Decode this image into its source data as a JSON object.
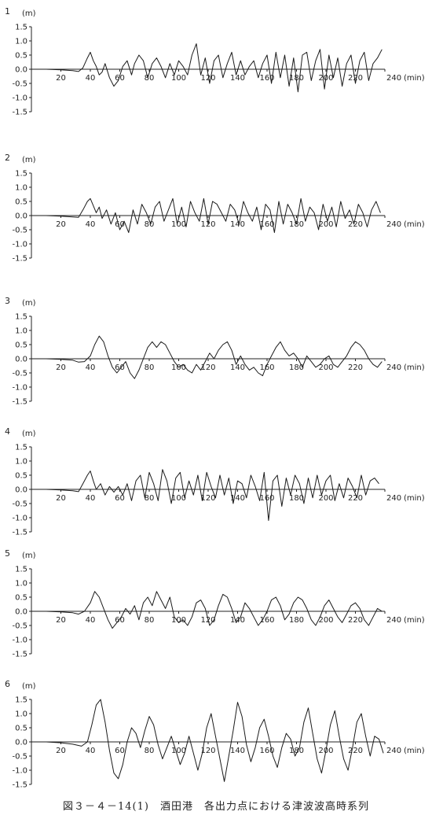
{
  "caption": "図３－４－14(1)　酒田港　各出力点における津波波高時系列",
  "chart_data": [
    {
      "type": "line",
      "panel_label": "1",
      "ylabel": "(m)",
      "xlabel": "(min)",
      "xlim": [
        0,
        240
      ],
      "ylim": [
        -1.5,
        1.5
      ],
      "yticks": [
        "1.5",
        "1.0",
        "0.5",
        "0.0",
        "-0.5",
        "-1.0",
        "-1.5"
      ],
      "xticks": [
        "20",
        "40",
        "60",
        "80",
        "100",
        "120",
        "140",
        "160",
        "180",
        "200",
        "220",
        "240"
      ],
      "x": [
        0,
        10,
        20,
        28,
        32,
        35,
        38,
        40,
        42,
        44,
        46,
        48,
        50,
        53,
        56,
        59,
        62,
        65,
        68,
        70,
        73,
        76,
        79,
        82,
        85,
        88,
        91,
        94,
        97,
        100,
        103,
        106,
        109,
        112,
        115,
        118,
        121,
        124,
        127,
        130,
        133,
        136,
        139,
        142,
        145,
        148,
        151,
        154,
        157,
        160,
        163,
        166,
        169,
        172,
        175,
        178,
        181,
        184,
        187,
        190,
        193,
        196,
        199,
        202,
        205,
        208,
        211,
        214,
        217,
        220,
        223,
        226,
        229,
        232,
        235,
        238
      ],
      "y": [
        0,
        0,
        -0.02,
        -0.05,
        -0.08,
        0.05,
        0.4,
        0.6,
        0.3,
        0.1,
        -0.2,
        -0.1,
        0.2,
        -0.3,
        -0.6,
        -0.4,
        0.1,
        0.3,
        -0.2,
        0.2,
        0.5,
        0.3,
        -0.3,
        0.2,
        0.4,
        0.1,
        -0.3,
        0.2,
        -0.2,
        0.3,
        0.1,
        -0.2,
        0.5,
        0.9,
        -0.2,
        0.4,
        -0.5,
        0.3,
        0.5,
        -0.3,
        0.2,
        0.6,
        -0.2,
        0.3,
        -0.2,
        0.1,
        0.3,
        -0.3,
        0.2,
        0.5,
        -0.5,
        0.6,
        -0.3,
        0.5,
        -0.6,
        0.4,
        -0.8,
        0.5,
        0.6,
        -0.4,
        0.3,
        0.7,
        -0.7,
        0.5,
        -0.3,
        0.4,
        -0.6,
        0.2,
        0.5,
        -0.5,
        0.3,
        0.6,
        -0.4,
        0.2,
        0.4,
        0.7
      ]
    },
    {
      "type": "line",
      "panel_label": "2",
      "ylabel": "(m)",
      "xlabel": "(min)",
      "xlim": [
        0,
        240
      ],
      "ylim": [
        -1.5,
        1.5
      ],
      "yticks": [
        "1.5",
        "1.0",
        "0.5",
        "0.0",
        "-0.5",
        "-1.0",
        "-1.5"
      ],
      "xticks": [
        "20",
        "40",
        "60",
        "80",
        "100",
        "120",
        "140",
        "160",
        "180",
        "200",
        "220",
        "240"
      ],
      "x": [
        0,
        10,
        20,
        28,
        32,
        35,
        38,
        40,
        42,
        44,
        46,
        48,
        51,
        54,
        57,
        60,
        63,
        66,
        69,
        72,
        75,
        78,
        81,
        84,
        87,
        90,
        93,
        96,
        99,
        102,
        105,
        108,
        111,
        114,
        117,
        120,
        123,
        126,
        129,
        132,
        135,
        138,
        141,
        144,
        147,
        150,
        153,
        156,
        159,
        162,
        165,
        168,
        171,
        174,
        177,
        180,
        183,
        186,
        189,
        192,
        195,
        198,
        201,
        204,
        207,
        210,
        213,
        216,
        219,
        222,
        225,
        228,
        231,
        234,
        237
      ],
      "y": [
        0,
        0,
        -0.02,
        -0.05,
        -0.06,
        0.2,
        0.5,
        0.6,
        0.35,
        0.1,
        0.3,
        -0.1,
        0.2,
        -0.3,
        0.1,
        -0.5,
        -0.2,
        -0.6,
        0.2,
        -0.3,
        0.4,
        0.1,
        -0.3,
        0.3,
        0.5,
        -0.2,
        0.2,
        0.6,
        -0.3,
        0.3,
        -0.4,
        0.5,
        0.1,
        -0.2,
        0.6,
        -0.3,
        0.5,
        0.4,
        0.1,
        -0.2,
        0.4,
        0.2,
        -0.3,
        0.5,
        0.1,
        -0.2,
        0.3,
        -0.5,
        0.4,
        0.2,
        -0.6,
        0.5,
        -0.3,
        0.4,
        0.1,
        -0.3,
        0.6,
        -0.2,
        0.3,
        0.1,
        -0.5,
        0.4,
        -0.2,
        0.3,
        -0.4,
        0.5,
        -0.1,
        0.2,
        -0.3,
        0.4,
        0.1,
        -0.4,
        0.2,
        0.5,
        0.1
      ]
    },
    {
      "type": "line",
      "panel_label": "3",
      "ylabel": "(m)",
      "xlabel": "(min)",
      "xlim": [
        0,
        240
      ],
      "ylim": [
        -1.5,
        1.5
      ],
      "yticks": [
        "1.5",
        "1.0",
        "0.5",
        "0.0",
        "-0.5",
        "-1.0",
        "-1.5"
      ],
      "xticks": [
        "20",
        "40",
        "60",
        "80",
        "100",
        "120",
        "140",
        "160",
        "180",
        "200",
        "220",
        "240"
      ],
      "x": [
        0,
        10,
        20,
        28,
        32,
        36,
        40,
        43,
        46,
        49,
        52,
        55,
        58,
        61,
        64,
        67,
        70,
        73,
        76,
        79,
        82,
        85,
        88,
        91,
        94,
        97,
        100,
        103,
        106,
        109,
        112,
        115,
        118,
        121,
        124,
        127,
        130,
        133,
        136,
        139,
        142,
        145,
        148,
        151,
        154,
        157,
        160,
        163,
        166,
        169,
        172,
        175,
        178,
        181,
        184,
        187,
        190,
        193,
        196,
        199,
        202,
        205,
        208,
        211,
        214,
        217,
        220,
        223,
        226,
        229,
        232,
        235,
        238
      ],
      "y": [
        0,
        0,
        -0.02,
        -0.05,
        -0.12,
        -0.1,
        0.1,
        0.5,
        0.8,
        0.6,
        0.1,
        -0.3,
        -0.5,
        -0.3,
        -0.1,
        -0.5,
        -0.7,
        -0.4,
        0,
        0.4,
        0.6,
        0.4,
        0.6,
        0.5,
        0.2,
        -0.1,
        -0.3,
        -0.2,
        -0.4,
        -0.5,
        -0.2,
        -0.4,
        -0.1,
        0.2,
        0,
        0.3,
        0.5,
        0.6,
        0.3,
        -0.2,
        0.1,
        -0.2,
        -0.4,
        -0.3,
        -0.5,
        -0.6,
        -0.2,
        0.1,
        0.4,
        0.6,
        0.3,
        0.1,
        0.2,
        0,
        -0.3,
        0.1,
        -0.1,
        -0.3,
        -0.2,
        0,
        0.1,
        -0.2,
        -0.3,
        -0.1,
        0.1,
        0.4,
        0.6,
        0.5,
        0.3,
        0,
        -0.2,
        -0.3,
        -0.1
      ]
    },
    {
      "type": "line",
      "panel_label": "4",
      "ylabel": "(m)",
      "xlabel": "(min)",
      "xlim": [
        0,
        240
      ],
      "ylim": [
        -1.5,
        1.5
      ],
      "yticks": [
        "1.5",
        "1.0",
        "0.5",
        "0.0",
        "-0.5",
        "-1.0",
        "-1.5"
      ],
      "xticks": [
        "20",
        "40",
        "60",
        "80",
        "100",
        "120",
        "140",
        "160",
        "180",
        "200",
        "220",
        "240"
      ],
      "x": [
        0,
        10,
        20,
        28,
        32,
        35,
        38,
        40,
        42,
        44,
        47,
        50,
        53,
        56,
        59,
        62,
        65,
        68,
        71,
        74,
        77,
        80,
        83,
        86,
        89,
        92,
        95,
        98,
        101,
        104,
        107,
        110,
        113,
        116,
        119,
        122,
        125,
        128,
        131,
        134,
        137,
        140,
        143,
        146,
        149,
        152,
        155,
        158,
        161,
        164,
        167,
        170,
        173,
        176,
        179,
        182,
        185,
        188,
        191,
        194,
        197,
        200,
        203,
        206,
        209,
        212,
        215,
        218,
        221,
        224,
        227,
        230,
        233,
        236
      ],
      "y": [
        0,
        0,
        -0.02,
        -0.05,
        -0.08,
        0.2,
        0.5,
        0.65,
        0.3,
        0,
        0.2,
        -0.2,
        0.1,
        -0.1,
        0.1,
        -0.2,
        0.2,
        -0.4,
        0.3,
        0.5,
        -0.3,
        0.6,
        0.2,
        -0.4,
        0.7,
        0.3,
        -0.5,
        0.4,
        0.6,
        -0.3,
        0.3,
        -0.2,
        0.5,
        -0.4,
        0.6,
        0.1,
        -0.3,
        0.5,
        -0.2,
        0.4,
        -0.5,
        0.3,
        0.2,
        -0.3,
        0.5,
        0.1,
        -0.4,
        0.6,
        -1.1,
        0.3,
        0.5,
        -0.6,
        0.4,
        -0.2,
        0.5,
        0.2,
        -0.5,
        0.4,
        -0.3,
        0.5,
        -0.2,
        0.3,
        0.5,
        -0.4,
        0.2,
        -0.3,
        0.4,
        0.1,
        -0.3,
        0.5,
        -0.2,
        0.3,
        0.4,
        0.2
      ]
    },
    {
      "type": "line",
      "panel_label": "5",
      "ylabel": "(m)",
      "xlabel": "(min)",
      "xlim": [
        0,
        240
      ],
      "ylim": [
        -1.5,
        1.5
      ],
      "yticks": [
        "1.5",
        "1.0",
        "0.5",
        "0.0",
        "-0.5",
        "-1.0",
        "-1.5"
      ],
      "xticks": [
        "20",
        "40",
        "60",
        "80",
        "100",
        "120",
        "140",
        "160",
        "180",
        "200",
        "220",
        "240"
      ],
      "x": [
        0,
        10,
        20,
        28,
        32,
        36,
        40,
        43,
        46,
        49,
        52,
        55,
        58,
        61,
        64,
        67,
        70,
        73,
        76,
        79,
        82,
        85,
        88,
        91,
        94,
        97,
        100,
        103,
        106,
        109,
        112,
        115,
        118,
        121,
        124,
        127,
        130,
        133,
        136,
        139,
        142,
        145,
        148,
        151,
        154,
        157,
        160,
        163,
        166,
        169,
        172,
        175,
        178,
        181,
        184,
        187,
        190,
        193,
        196,
        199,
        202,
        205,
        208,
        211,
        214,
        217,
        220,
        223,
        226,
        229,
        232,
        235,
        238
      ],
      "y": [
        0,
        0,
        -0.02,
        -0.05,
        -0.1,
        0,
        0.3,
        0.7,
        0.5,
        0.1,
        -0.3,
        -0.6,
        -0.4,
        -0.2,
        0.1,
        -0.1,
        0.2,
        -0.3,
        0.3,
        0.5,
        0.2,
        0.7,
        0.4,
        0.1,
        0.5,
        -0.2,
        -0.4,
        -0.3,
        -0.5,
        -0.2,
        0.3,
        0.4,
        0.1,
        -0.5,
        -0.3,
        0.2,
        0.6,
        0.5,
        0.1,
        -0.4,
        -0.2,
        0.3,
        0.1,
        -0.2,
        -0.5,
        -0.3,
        0,
        0.4,
        0.5,
        0.2,
        -0.3,
        -0.1,
        0.3,
        0.5,
        0.4,
        0.1,
        -0.3,
        -0.5,
        -0.2,
        0.2,
        0.4,
        0.1,
        -0.2,
        -0.4,
        -0.1,
        0.2,
        0.3,
        0.1,
        -0.3,
        -0.5,
        -0.2,
        0.1,
        0
      ]
    },
    {
      "type": "line",
      "panel_label": "6",
      "ylabel": "(m)",
      "xlabel": "(min)",
      "xlim": [
        0,
        240
      ],
      "ylim": [
        -1.5,
        1.5
      ],
      "yticks": [
        "1.5",
        "1.0",
        "0.5",
        "0.0",
        "-0.5",
        "-1.0",
        "-1.5"
      ],
      "xticks": [
        "20",
        "40",
        "60",
        "80",
        "100",
        "120",
        "140",
        "160",
        "180",
        "200",
        "220",
        "240"
      ],
      "x": [
        0,
        10,
        20,
        28,
        34,
        38,
        41,
        44,
        47,
        50,
        53,
        56,
        59,
        62,
        65,
        68,
        71,
        74,
        77,
        80,
        83,
        86,
        89,
        92,
        95,
        98,
        101,
        104,
        107,
        110,
        113,
        116,
        119,
        122,
        125,
        128,
        131,
        134,
        137,
        140,
        143,
        146,
        149,
        152,
        155,
        158,
        161,
        164,
        167,
        170,
        173,
        176,
        179,
        182,
        185,
        188,
        191,
        194,
        197,
        200,
        203,
        206,
        209,
        212,
        215,
        218,
        221,
        224,
        227,
        230,
        233,
        236,
        239
      ],
      "y": [
        0,
        0,
        -0.03,
        -0.08,
        -0.15,
        0,
        0.6,
        1.3,
        1.5,
        0.7,
        -0.3,
        -1.1,
        -1.3,
        -0.8,
        0,
        0.5,
        0.3,
        -0.2,
        0.4,
        0.9,
        0.6,
        -0.1,
        -0.6,
        -0.2,
        0.2,
        -0.3,
        -0.8,
        -0.4,
        0.2,
        -0.4,
        -1.0,
        -0.4,
        0.5,
        1.0,
        0.2,
        -0.6,
        -1.4,
        -0.5,
        0.4,
        1.4,
        0.9,
        -0.1,
        -0.7,
        -0.2,
        0.5,
        0.8,
        0.2,
        -0.5,
        -0.9,
        -0.2,
        0.3,
        0.1,
        -0.5,
        -0.2,
        0.7,
        1.2,
        0.3,
        -0.6,
        -1.1,
        -0.3,
        0.6,
        1.1,
        0.2,
        -0.6,
        -1.0,
        -0.2,
        0.7,
        1.0,
        0.2,
        -0.5,
        0.2,
        0.1,
        -0.4
      ]
    }
  ]
}
